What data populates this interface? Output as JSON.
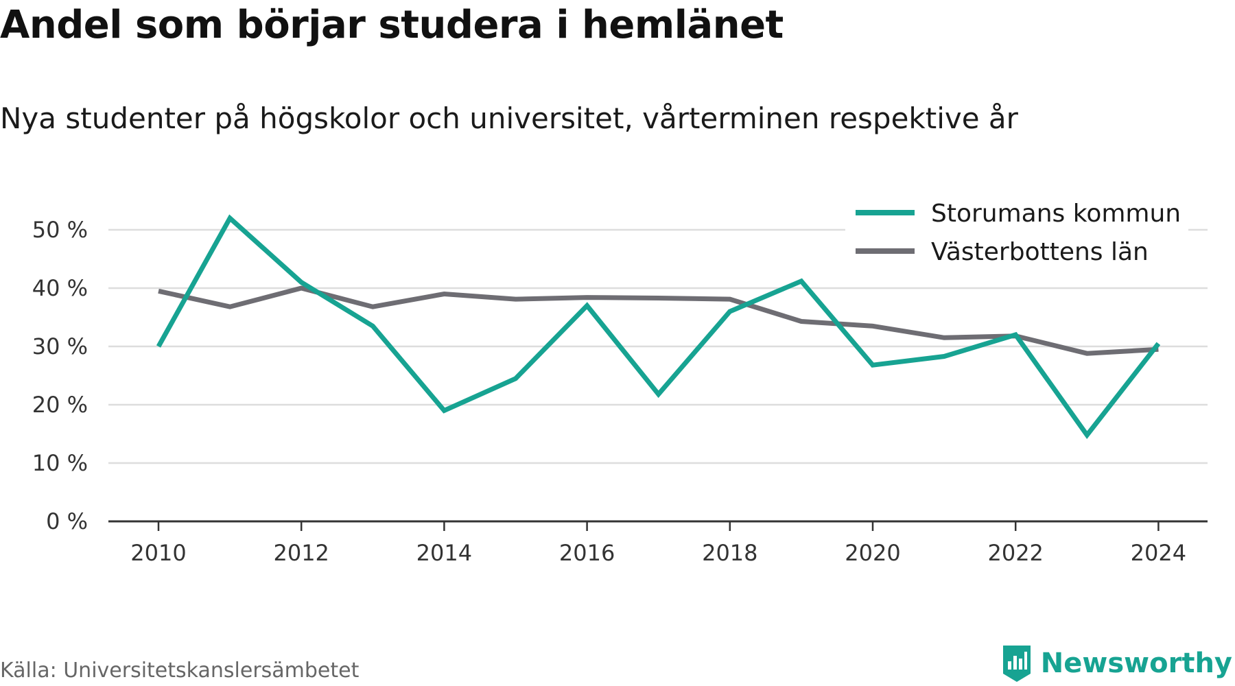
{
  "header": {
    "title": "Andel som börjar studera i hemlänet",
    "subtitle": "Nya studenter på högskolor och universitet, vårterminen respektive år"
  },
  "footer": {
    "source": "Källa: Universitetskanslersämbetet",
    "brand": "Newsworthy"
  },
  "colors": {
    "series_1": "#17a392",
    "series_2": "#6e6d73",
    "grid": "#dddddd",
    "axis": "#333333",
    "brand": "#17a392"
  },
  "chart_data": {
    "type": "line",
    "title": "Andel som börjar studera i hemlänet",
    "subtitle": "Nya studenter på högskolor och universitet, vårterminen respektive år",
    "x": [
      2010,
      2011,
      2012,
      2013,
      2014,
      2015,
      2016,
      2017,
      2018,
      2019,
      2020,
      2021,
      2022,
      2023,
      2024
    ],
    "x_ticks": [
      "2010",
      "2012",
      "2014",
      "2016",
      "2018",
      "2020",
      "2022",
      "2024"
    ],
    "x_tick_values": [
      2010,
      2012,
      2014,
      2016,
      2018,
      2020,
      2022,
      2024
    ],
    "y_ticks": [
      "0 %",
      "10 %",
      "20 %",
      "30 %",
      "40 %",
      "50 %"
    ],
    "y_tick_values": [
      0,
      10,
      20,
      30,
      40,
      50
    ],
    "xlim": [
      2009.3,
      2024.7
    ],
    "ylim": [
      0,
      52
    ],
    "grid": true,
    "legend_position": "top-right",
    "series": [
      {
        "name": "Storumans kommun",
        "color": "#17a392",
        "values": [
          30.0,
          52.0,
          41.0,
          33.5,
          19.0,
          24.5,
          37.0,
          21.8,
          36.0,
          41.2,
          26.8,
          28.3,
          32.0,
          14.8,
          30.5
        ]
      },
      {
        "name": "Västerbottens län",
        "color": "#6e6d73",
        "values": [
          39.5,
          36.8,
          40.0,
          36.8,
          39.0,
          38.1,
          38.4,
          38.3,
          38.1,
          34.3,
          33.5,
          31.5,
          31.8,
          28.8,
          29.5
        ]
      }
    ]
  }
}
